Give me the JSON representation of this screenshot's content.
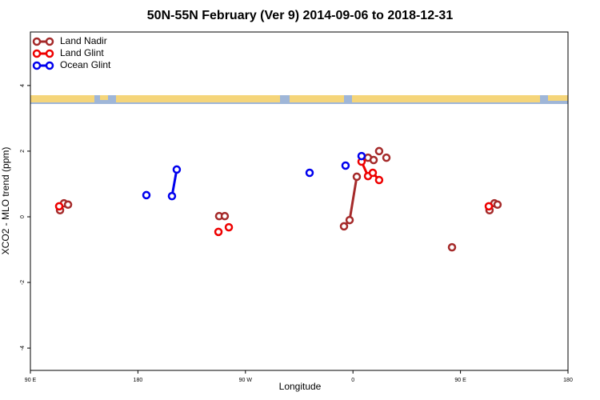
{
  "chart_data": {
    "type": "scatter",
    "title": "50N-55N February (Ver 9)   2014-09-06 to 2018-12-31",
    "xlabel": "Longitude",
    "ylabel": "XCO2 - MLO trend (ppm)",
    "xlim": [
      90,
      540
    ],
    "ylim": [
      -4.68,
      5.63
    ],
    "xticks": [
      {
        "value": 90,
        "label": "90 E"
      },
      {
        "value": 180,
        "label": "180"
      },
      {
        "value": 270,
        "label": "90 W"
      },
      {
        "value": 360,
        "label": "0"
      },
      {
        "value": 450,
        "label": "90 E"
      },
      {
        "value": 540,
        "label": "180"
      }
    ],
    "yticks": [
      -4,
      -2,
      0,
      2,
      4
    ],
    "legend": "top-left",
    "series": [
      {
        "name": "Land Nadir",
        "color": "#a52a2a",
        "x": [
          114.8,
          null,
          118.1,
          null,
          121.5,
          null,
          248.0,
          null,
          252.7,
          null,
          352.5,
          357.2,
          363.2,
          null,
          372.6,
          null,
          377.3,
          null,
          381.9,
          null,
          388.0,
          null,
          442.9,
          null,
          474.3,
          null,
          478.4,
          null,
          481.0
        ],
        "values": [
          0.2,
          null,
          0.41,
          null,
          0.37,
          null,
          0.02,
          null,
          0.02,
          null,
          -0.29,
          -0.1,
          1.22,
          null,
          1.8,
          null,
          1.73,
          null,
          2.0,
          null,
          1.8,
          null,
          -0.93,
          null,
          0.2,
          null,
          0.41,
          null,
          0.37
        ]
      },
      {
        "name": "Land Glint",
        "color": "#ee0000",
        "x": [
          114.1,
          null,
          247.4,
          null,
          256.1,
          null,
          367.2,
          372.6,
          376.6,
          381.9,
          null,
          473.7
        ],
        "values": [
          0.32,
          null,
          -0.46,
          null,
          -0.32,
          null,
          1.68,
          1.24,
          1.34,
          1.12,
          null,
          0.32
        ]
      },
      {
        "name": "Ocean Glint",
        "color": "#0000ee",
        "x": [
          187.1,
          null,
          208.5,
          212.5,
          null,
          323.7,
          null,
          353.8,
          null,
          367.2
        ],
        "values": [
          0.66,
          null,
          0.63,
          1.44,
          null,
          1.34,
          null,
          1.56,
          null,
          1.85
        ]
      }
    ]
  }
}
